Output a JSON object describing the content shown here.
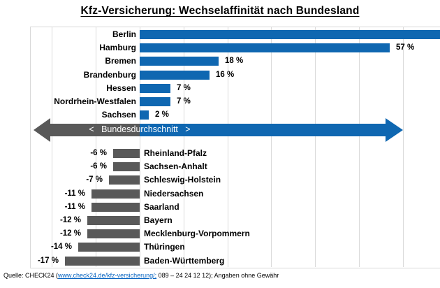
{
  "title": "Kfz-Versicherung: Wechselaffinität nach Bundesland",
  "chart_data": {
    "type": "bar",
    "orientation": "horizontal",
    "title": "Kfz-Versicherung: Wechselaffinität nach Bundesland",
    "value_suffix": " %",
    "axis": {
      "min": -25,
      "max": 70,
      "gridline_step": 10,
      "tick_labels_visible": false,
      "zero_baseline": true
    },
    "grid": "vertical-lines-on",
    "legend_position": "none",
    "above_average": [
      {
        "state": "Berlin",
        "value": null,
        "value_label": "",
        "clipped_at_right_edge": true
      },
      {
        "state": "Hamburg",
        "value": 57,
        "value_label": "57 %"
      },
      {
        "state": "Bremen",
        "value": 18,
        "value_label": "18 %"
      },
      {
        "state": "Brandenburg",
        "value": 16,
        "value_label": "16 %"
      },
      {
        "state": "Hessen",
        "value": 7,
        "value_label": "7 %"
      },
      {
        "state": "Nordrhein-Westfalen",
        "value": 7,
        "value_label": "7 %"
      },
      {
        "state": "Sachsen",
        "value": 2,
        "value_label": "2 %"
      }
    ],
    "below_average": [
      {
        "state": "Rheinland-Pfalz",
        "value": -6,
        "value_label": "-6 %"
      },
      {
        "state": "Sachsen-Anhalt",
        "value": -6,
        "value_label": "-6 %"
      },
      {
        "state": "Schleswig-Holstein",
        "value": -7,
        "value_label": "-7 %"
      },
      {
        "state": "Niedersachsen",
        "value": -11,
        "value_label": "-11 %"
      },
      {
        "state": "Saarland",
        "value": -11,
        "value_label": "-11 %"
      },
      {
        "state": "Bayern",
        "value": -12,
        "value_label": "-12 %"
      },
      {
        "state": "Mecklenburg-Vorpommern",
        "value": -12,
        "value_label": "-12 %"
      },
      {
        "state": "Thüringen",
        "value": -14,
        "value_label": "-14 %"
      },
      {
        "state": "Baden-Württemberg",
        "value": -17,
        "value_label": "-17 %"
      }
    ],
    "average_divider": {
      "label": "<   Bundesdurchschnitt   >"
    },
    "colors": {
      "above_bar": "#0f67b1",
      "below_bar": "#595959",
      "gridline": "#d9d9d9",
      "divider_text": "#ffffff",
      "label_text": "#000000"
    }
  },
  "footer": {
    "prefix": "Quelle: CHECK24 (",
    "link": "www.check24.de/kfz-versicherung/;",
    "suffix": " 089 – 24 24 12 12); Angaben ohne Gewähr",
    "link_color": "#0563c1"
  }
}
